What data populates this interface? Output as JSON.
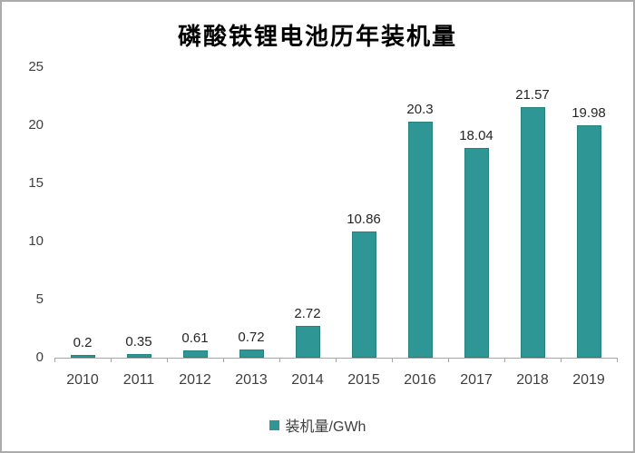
{
  "chart_data": {
    "type": "bar",
    "title": "磷酸铁锂电池历年装机量",
    "categories": [
      "2010",
      "2011",
      "2012",
      "2013",
      "2014",
      "2015",
      "2016",
      "2017",
      "2018",
      "2019"
    ],
    "values": [
      0.2,
      0.35,
      0.61,
      0.72,
      2.72,
      10.86,
      20.3,
      18.04,
      21.57,
      19.98
    ],
    "value_labels": [
      "0.2",
      "0.35",
      "0.61",
      "0.72",
      "2.72",
      "10.86",
      "20.3",
      "18.04",
      "21.57",
      "19.98"
    ],
    "series_name": "装机量/GWh",
    "legend_label": "装机量/GWh",
    "xlabel": "",
    "ylabel": "",
    "y_ticks": [
      0,
      5,
      10,
      15,
      20,
      25
    ],
    "ylim": [
      0,
      25
    ],
    "grid": false,
    "legend_position": "bottom",
    "colors": {
      "bar_fill": "#2e9694",
      "bar_edge": "#27827f",
      "axis": "#a6a6a6",
      "frame_border": "#ababab",
      "text": "#262626"
    }
  }
}
